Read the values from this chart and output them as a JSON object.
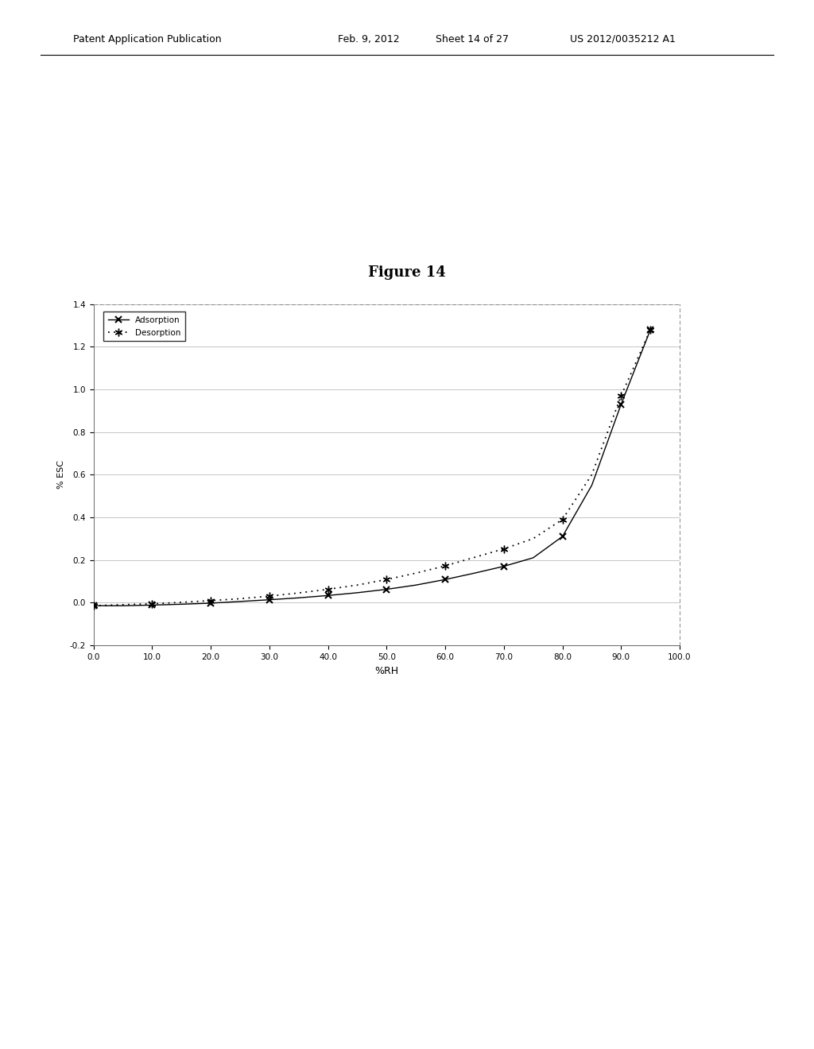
{
  "header_left": "Patent Application Publication",
  "header_mid": "Feb. 9, 2012",
  "header_sheet": "Sheet 14 of 27",
  "header_right": "US 2012/0035212 A1",
  "title": "Figure 14",
  "xlabel": "%RH",
  "ylabel": "% ESC",
  "xlim": [
    0.0,
    100.0
  ],
  "ylim": [
    -0.2,
    1.4
  ],
  "xticks": [
    0.0,
    10.0,
    20.0,
    30.0,
    40.0,
    50.0,
    60.0,
    70.0,
    80.0,
    90.0,
    100.0
  ],
  "yticks": [
    -0.2,
    0.0,
    0.2,
    0.4,
    0.6,
    0.8,
    1.0,
    1.2,
    1.4
  ],
  "adsorption_x": [
    0.0,
    5.0,
    10.0,
    15.0,
    20.0,
    25.0,
    30.0,
    35.0,
    40.0,
    45.0,
    50.0,
    55.0,
    60.0,
    65.0,
    70.0,
    75.0,
    80.0,
    85.0,
    90.0,
    95.0
  ],
  "adsorption_y": [
    -0.015,
    -0.015,
    -0.012,
    -0.008,
    -0.003,
    0.005,
    0.013,
    0.022,
    0.033,
    0.046,
    0.062,
    0.082,
    0.108,
    0.138,
    0.17,
    0.21,
    0.31,
    0.55,
    0.93,
    1.28
  ],
  "desorption_x": [
    0.0,
    5.0,
    10.0,
    15.0,
    20.0,
    25.0,
    30.0,
    35.0,
    40.0,
    45.0,
    50.0,
    55.0,
    60.0,
    65.0,
    70.0,
    75.0,
    80.0,
    85.0,
    90.0,
    95.0
  ],
  "desorption_y": [
    -0.015,
    -0.01,
    -0.006,
    0.001,
    0.009,
    0.018,
    0.03,
    0.045,
    0.062,
    0.082,
    0.108,
    0.138,
    0.172,
    0.212,
    0.252,
    0.3,
    0.39,
    0.6,
    0.97,
    1.28
  ],
  "adsorption_marker_x": [
    0.0,
    10.0,
    20.0,
    30.0,
    40.0,
    50.0,
    60.0,
    70.0,
    80.0,
    90.0,
    95.0
  ],
  "adsorption_marker_y": [
    -0.015,
    -0.012,
    -0.003,
    0.013,
    0.033,
    0.062,
    0.108,
    0.17,
    0.31,
    0.93,
    1.28
  ],
  "desorption_marker_x": [
    0.0,
    10.0,
    20.0,
    30.0,
    40.0,
    50.0,
    60.0,
    70.0,
    80.0,
    90.0,
    95.0
  ],
  "desorption_marker_y": [
    -0.015,
    -0.006,
    0.009,
    0.03,
    0.062,
    0.108,
    0.172,
    0.252,
    0.39,
    0.97,
    1.28
  ]
}
